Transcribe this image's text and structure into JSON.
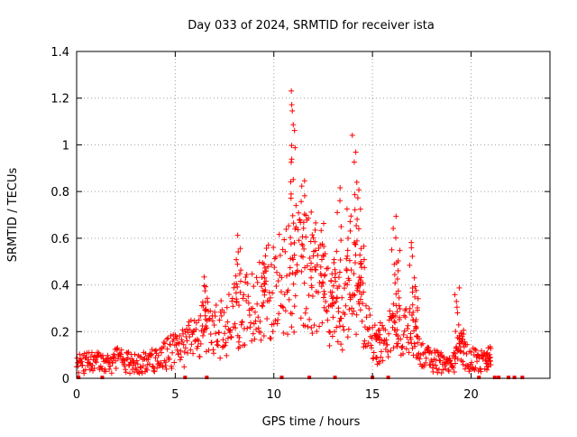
{
  "chart_data": {
    "type": "scatter",
    "title": "Day 033 of 2024, SRMTID for receiver ista",
    "xlabel": "GPS time / hours",
    "ylabel": "SRMTID / TECUs",
    "xlim": [
      0,
      24
    ],
    "ylim": [
      0,
      1.4
    ],
    "xticks": [
      0,
      5,
      10,
      15,
      20
    ],
    "yticks": [
      0,
      0.2,
      0.4,
      0.6,
      0.8,
      1,
      1.2,
      1.4
    ],
    "ytick_labels": [
      "0",
      "0.2",
      "0.4",
      "0.6",
      "0.8",
      "1",
      "1.2",
      "1.4"
    ],
    "grid": true,
    "marker": "plus",
    "color": "#ff0000",
    "profile": [
      [
        0.0,
        0.06
      ],
      [
        0.5,
        0.07
      ],
      [
        1.0,
        0.07
      ],
      [
        1.5,
        0.06
      ],
      [
        2.0,
        0.08
      ],
      [
        2.5,
        0.07
      ],
      [
        3.0,
        0.06
      ],
      [
        3.5,
        0.07
      ],
      [
        4.0,
        0.08
      ],
      [
        4.5,
        0.1
      ],
      [
        5.0,
        0.12
      ],
      [
        5.5,
        0.13
      ],
      [
        6.0,
        0.18
      ],
      [
        6.5,
        0.22
      ],
      [
        7.0,
        0.2
      ],
      [
        7.5,
        0.22
      ],
      [
        8.0,
        0.3
      ],
      [
        8.5,
        0.32
      ],
      [
        9.0,
        0.28
      ],
      [
        9.5,
        0.35
      ],
      [
        10.0,
        0.38
      ],
      [
        10.5,
        0.42
      ],
      [
        11.0,
        0.45
      ],
      [
        11.5,
        0.48
      ],
      [
        12.0,
        0.4
      ],
      [
        12.5,
        0.35
      ],
      [
        13.0,
        0.3
      ],
      [
        13.5,
        0.28
      ],
      [
        14.0,
        0.4
      ],
      [
        14.5,
        0.3
      ],
      [
        15.0,
        0.14
      ],
      [
        15.5,
        0.16
      ],
      [
        16.0,
        0.25
      ],
      [
        16.5,
        0.18
      ],
      [
        17.0,
        0.2
      ],
      [
        17.5,
        0.1
      ],
      [
        18.0,
        0.08
      ],
      [
        18.5,
        0.07
      ],
      [
        19.0,
        0.06
      ],
      [
        19.5,
        0.12
      ],
      [
        20.0,
        0.08
      ],
      [
        20.5,
        0.07
      ],
      [
        21.0,
        0.06
      ]
    ],
    "peaks": [
      {
        "x": 6.5,
        "y": 0.42
      },
      {
        "x": 8.2,
        "y": 0.6
      },
      {
        "x": 9.5,
        "y": 0.5
      },
      {
        "x": 10.9,
        "y": 1.24
      },
      {
        "x": 11.0,
        "y": 1.14
      },
      {
        "x": 11.5,
        "y": 0.86
      },
      {
        "x": 12.0,
        "y": 0.71
      },
      {
        "x": 12.5,
        "y": 0.65
      },
      {
        "x": 13.0,
        "y": 0.52
      },
      {
        "x": 13.3,
        "y": 0.81
      },
      {
        "x": 13.8,
        "y": 0.74
      },
      {
        "x": 14.1,
        "y": 1.05
      },
      {
        "x": 14.3,
        "y": 0.82
      },
      {
        "x": 14.5,
        "y": 0.57
      },
      {
        "x": 15.3,
        "y": 0.2
      },
      {
        "x": 16.1,
        "y": 0.68
      },
      {
        "x": 16.3,
        "y": 0.55
      },
      {
        "x": 17.0,
        "y": 0.59
      },
      {
        "x": 17.2,
        "y": 0.4
      },
      {
        "x": 19.3,
        "y": 0.39
      },
      {
        "x": 19.5,
        "y": 0.2
      },
      {
        "x": 20.9,
        "y": 0.14
      }
    ],
    "zero_markers": [
      0.1,
      1.3,
      5.5,
      6.6,
      10.4,
      11.8,
      13.1,
      15.0,
      15.8,
      20.4,
      21.2,
      21.4,
      21.9,
      22.2,
      22.6
    ]
  }
}
